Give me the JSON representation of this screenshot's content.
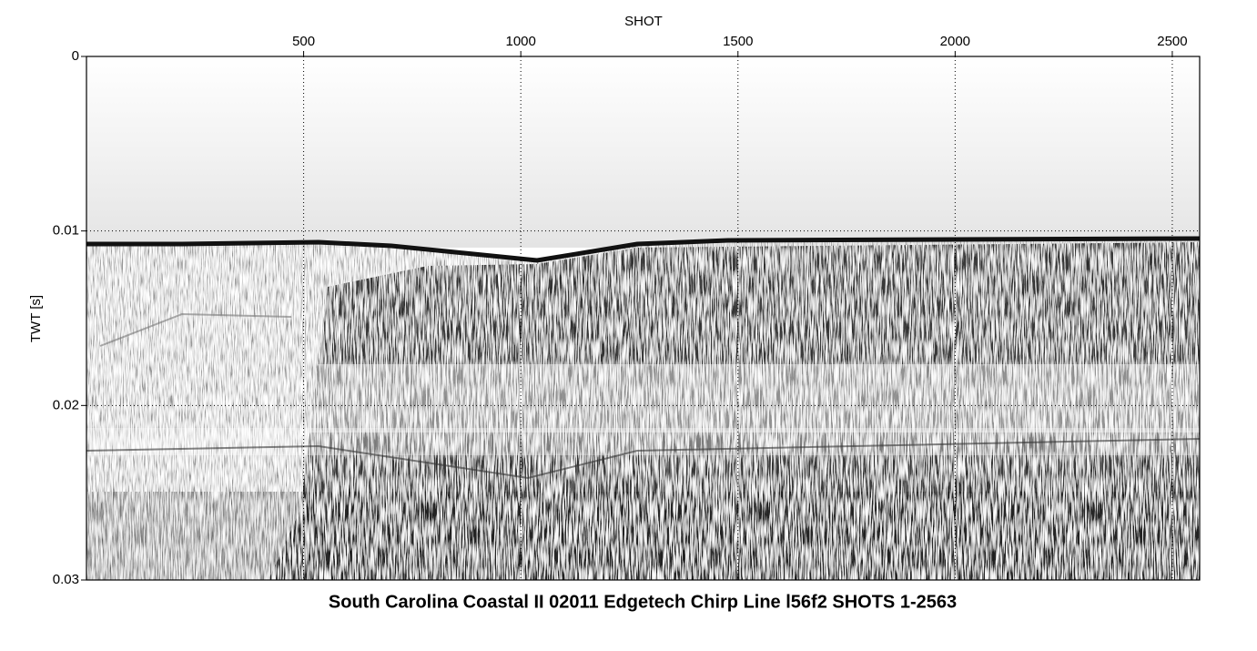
{
  "chart_data": {
    "type": "seismic",
    "title": "South Carolina Coastal II 02011 Edgetech Chirp Line l56f2 SHOTS 1-2563",
    "x_label": "SHOT",
    "y_label": "TWT [s]",
    "xlim": [
      0,
      2563
    ],
    "xticks": [
      500,
      1000,
      1500,
      2000,
      2500
    ],
    "ylim": [
      0,
      0.03
    ],
    "yticks": [
      0,
      0.01,
      0.02,
      0.03
    ],
    "y_inverted": true,
    "grid": true
  }
}
